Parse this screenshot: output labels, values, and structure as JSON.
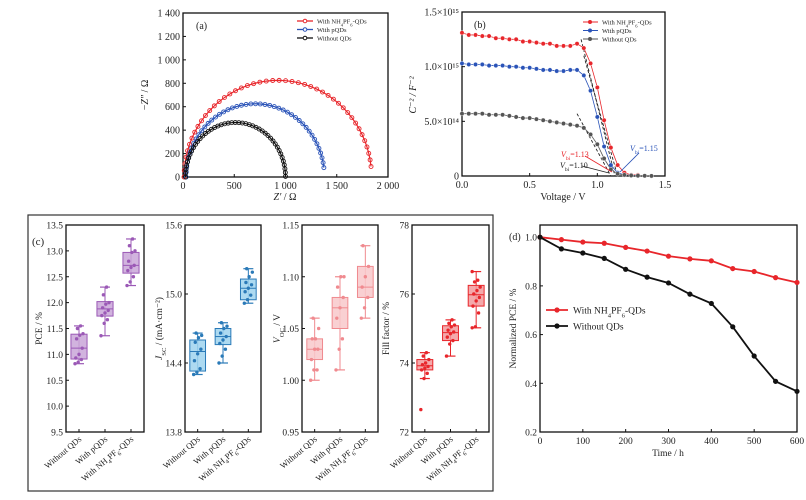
{
  "figure": {
    "panel_labels": {
      "a": "(a)",
      "b": "(b)",
      "c": "(c)",
      "d": "(d)"
    }
  },
  "colors": {
    "red": "#e8262b",
    "blue": "#2a53b8",
    "black": "#111111",
    "gray": "#555555",
    "purple": "#9b59b6",
    "purple_fill": "#c9a6d8",
    "cyan": "#2a7ab8",
    "cyan_fill": "#9fd3ef",
    "pink": "#f08a8f",
    "pink_fill": "#f8c8ca",
    "red_box": "#e8262b",
    "red_fill": "#f29a9c"
  },
  "chart_data": [
    {
      "id": "a",
      "type": "scatter",
      "title": "",
      "xlabel": "Z′ / Ω",
      "ylabel": "−Z″ / Ω",
      "xlim": [
        0,
        2000
      ],
      "ylim": [
        0,
        1400
      ],
      "xticks": [
        0,
        500,
        1000,
        1500,
        2000
      ],
      "xtick_labels": [
        "0",
        "500",
        "1 000",
        "1 500",
        "2 000"
      ],
      "yticks": [
        0,
        200,
        400,
        600,
        800,
        1000,
        1200,
        1400
      ],
      "ytick_labels": [
        "0",
        "200",
        "400",
        "600",
        "800",
        "1 000",
        "1 200",
        "1 400"
      ],
      "legend_position": "top-right",
      "series": [
        {
          "name": "With NH4PF6-QDs",
          "color_key": "red",
          "semicircle": {
            "x_start": 10,
            "x_end": 1840,
            "peak": 825,
            "end_y": 90
          }
        },
        {
          "name": "With pQDs",
          "color_key": "blue",
          "semicircle": {
            "x_start": 30,
            "x_end": 1380,
            "peak": 625,
            "end_y": 80
          }
        },
        {
          "name": "Without QDs",
          "color_key": "black",
          "semicircle": {
            "x_start": 25,
            "x_end": 1000,
            "peak": 465,
            "end_y": 5
          }
        }
      ]
    },
    {
      "id": "b",
      "type": "line",
      "xlabel": "Voltage / V",
      "ylabel": "C⁻² / F⁻²",
      "xlim": [
        0,
        1.5
      ],
      "ylim": [
        0,
        1500000000000000.0
      ],
      "xticks": [
        0,
        0.5,
        1.0,
        1.5
      ],
      "xtick_labels": [
        "0.0",
        "0.5",
        "1.0",
        "1.5"
      ],
      "yticks": [
        0,
        500000000000000.0,
        1000000000000000.0,
        1500000000000000.0
      ],
      "ytick_labels": [
        "0",
        "5.0×10¹⁴",
        "1.0×10¹⁵",
        "1.5×10¹⁵"
      ],
      "legend_position": "top-right",
      "annotations": [
        {
          "text": "Vbi=1.13",
          "color_key": "red",
          "x": 1.13
        },
        {
          "text": "Vbi=1.15",
          "color_key": "blue",
          "x": 1.15
        },
        {
          "text": "Vbi=1.10",
          "color_key": "black",
          "x": 1.1
        }
      ],
      "x": [
        0,
        0.05,
        0.1,
        0.15,
        0.2,
        0.25,
        0.3,
        0.35,
        0.4,
        0.45,
        0.5,
        0.55,
        0.6,
        0.65,
        0.7,
        0.75,
        0.8,
        0.85,
        0.9,
        0.95,
        1.0,
        1.05,
        1.1,
        1.15,
        1.2,
        1.25,
        1.3,
        1.35,
        1.4
      ],
      "series": [
        {
          "name": "With NH4PF6-QDs",
          "color_key": "red",
          "values": [
            1310000000000000.0,
            1290000000000000.0,
            1290000000000000.0,
            1280000000000000.0,
            1280000000000000.0,
            1260000000000000.0,
            1260000000000000.0,
            1250000000000000.0,
            1250000000000000.0,
            1230000000000000.0,
            1230000000000000.0,
            1220000000000000.0,
            1210000000000000.0,
            1210000000000000.0,
            1190000000000000.0,
            1190000000000000.0,
            1190000000000000.0,
            1210000000000000.0,
            1170000000000000.0,
            1030000000000000.0,
            810000000000000.0,
            510000000000000.0,
            260000000000000.0,
            100000000000000.0,
            30000000000000.0,
            10000000000000.0,
            10000000000000.0,
            null,
            null
          ]
        },
        {
          "name": "With pQDs",
          "color_key": "blue",
          "values": [
            1030000000000000.0,
            1020000000000000.0,
            1020000000000000.0,
            1020000000000000.0,
            1010000000000000.0,
            1010000000000000.0,
            1010000000000000.0,
            1000000000000000.0,
            1000000000000000.0,
            990000000000000.0,
            990000000000000.0,
            980000000000000.0,
            970000000000000.0,
            970000000000000.0,
            960000000000000.0,
            960000000000000.0,
            970000000000000.0,
            970000000000000.0,
            920000000000000.0,
            780000000000000.0,
            540000000000000.0,
            270000000000000.0,
            100000000000000.0,
            30000000000000.0,
            10000000000000.0,
            5000000000000.0,
            3000000000000.0,
            null,
            null
          ]
        },
        {
          "name": "Without QDs",
          "color_key": "gray",
          "values": [
            570000000000000.0,
            570000000000000.0,
            570000000000000.0,
            570000000000000.0,
            560000000000000.0,
            560000000000000.0,
            560000000000000.0,
            550000000000000.0,
            540000000000000.0,
            530000000000000.0,
            530000000000000.0,
            520000000000000.0,
            510000000000000.0,
            500000000000000.0,
            490000000000000.0,
            480000000000000.0,
            470000000000000.0,
            460000000000000.0,
            440000000000000.0,
            380000000000000.0,
            290000000000000.0,
            160000000000000.0,
            60000000000000.0,
            20000000000000.0,
            10000000000000.0,
            5000000000000.0,
            3000000000000.0,
            2000000000000.0,
            1000000000000.0
          ]
        }
      ]
    },
    {
      "id": "c1",
      "type": "box",
      "ylabel": "PCE / %",
      "ylim": [
        9.5,
        13.5
      ],
      "yticks": [
        9.5,
        10.0,
        10.5,
        11.0,
        11.5,
        12.0,
        12.5,
        13.0,
        13.5
      ],
      "ytick_labels": [
        "9.5",
        "10.0",
        "10.5",
        "11.0",
        "11.5",
        "12.0",
        "12.5",
        "13.0",
        "13.5"
      ],
      "categories": [
        "Without QDs",
        "With pQDs",
        "With NH4PF6-QDs"
      ],
      "color_key": "purple",
      "fill_key": "purple_fill",
      "boxes": [
        {
          "min": 10.82,
          "q1": 10.91,
          "median": 11.12,
          "q3": 11.39,
          "max": 11.55,
          "points": [
            10.82,
            10.85,
            10.9,
            10.93,
            11.0,
            11.12,
            11.3,
            11.37,
            11.4,
            11.5,
            11.55
          ]
        },
        {
          "min": 11.36,
          "q1": 11.74,
          "median": 11.88,
          "q3": 12.02,
          "max": 12.3,
          "points": [
            11.36,
            11.6,
            11.67,
            11.75,
            11.8,
            11.85,
            11.9,
            11.97,
            12.0,
            12.15,
            12.3
          ]
        },
        {
          "min": 12.33,
          "q1": 12.57,
          "median": 12.72,
          "q3": 12.97,
          "max": 13.23,
          "points": [
            12.33,
            12.4,
            12.5,
            12.62,
            12.68,
            12.72,
            12.8,
            12.97,
            13.0,
            13.1,
            13.23
          ]
        }
      ]
    },
    {
      "id": "c2",
      "type": "box",
      "ylabel": "JSC / (mA·cm⁻²)",
      "ylim": [
        13.8,
        15.6
      ],
      "yticks": [
        13.8,
        14.4,
        15.0,
        15.6
      ],
      "ytick_labels": [
        "13.8",
        "14.4",
        "15.0",
        "15.6"
      ],
      "categories": [
        "Without QDs",
        "With pQDs",
        "With NH4PF6-QDs"
      ],
      "color_key": "cyan",
      "fill_key": "cyan_fill",
      "boxes": [
        {
          "min": 14.3,
          "q1": 14.33,
          "median": 14.5,
          "q3": 14.6,
          "max": 14.66,
          "points": [
            14.3,
            14.32,
            14.35,
            14.42,
            14.48,
            14.52,
            14.58,
            14.62,
            14.64,
            14.66
          ]
        },
        {
          "min": 14.4,
          "q1": 14.56,
          "median": 14.63,
          "q3": 14.7,
          "max": 14.75,
          "points": [
            14.4,
            14.46,
            14.52,
            14.57,
            14.6,
            14.63,
            14.66,
            14.7,
            14.72,
            14.75
          ]
        },
        {
          "min": 14.92,
          "q1": 14.95,
          "median": 15.05,
          "q3": 15.13,
          "max": 15.22,
          "points": [
            14.92,
            14.95,
            14.99,
            15.02,
            15.05,
            15.08,
            15.1,
            15.15,
            15.19,
            15.22
          ]
        }
      ]
    },
    {
      "id": "c3",
      "type": "box",
      "ylabel": "VOC / V",
      "ylim": [
        0.95,
        1.15
      ],
      "yticks": [
        0.95,
        1.0,
        1.05,
        1.1,
        1.15
      ],
      "ytick_labels": [
        "0.95",
        "1.00",
        "1.05",
        "1.10",
        "1.15"
      ],
      "categories": [
        "Without QDs",
        "With pQDs",
        "With NH4PF6-QDs"
      ],
      "color_key": "pink",
      "fill_key": "pink_fill",
      "boxes": [
        {
          "min": 1.0,
          "q1": 1.02,
          "median": 1.03,
          "q3": 1.04,
          "max": 1.06,
          "points": [
            1.0,
            1.01,
            1.01,
            1.02,
            1.03,
            1.03,
            1.04,
            1.04,
            1.05,
            1.06
          ]
        },
        {
          "min": 1.01,
          "q1": 1.05,
          "median": 1.07,
          "q3": 1.08,
          "max": 1.1,
          "points": [
            1.01,
            1.03,
            1.04,
            1.06,
            1.07,
            1.08,
            1.09,
            1.1,
            1.1
          ]
        },
        {
          "min": 1.06,
          "q1": 1.08,
          "median": 1.09,
          "q3": 1.11,
          "max": 1.13,
          "points": [
            1.06,
            1.07,
            1.08,
            1.09,
            1.1,
            1.11,
            1.13
          ]
        }
      ]
    },
    {
      "id": "c4",
      "type": "box",
      "ylabel": "Fill factor / %",
      "ylim": [
        72,
        78
      ],
      "yticks": [
        72,
        74,
        76,
        78
      ],
      "ytick_labels": [
        "72",
        "74",
        "76",
        "78"
      ],
      "categories": [
        "Without QDs",
        "With pQDs",
        "With NH4PF6-QDs"
      ],
      "color_key": "red_box",
      "fill_key": "red_fill",
      "boxes": [
        {
          "min": 73.55,
          "q1": 73.8,
          "median": 73.92,
          "q3": 74.1,
          "max": 74.3,
          "points": [
            72.65,
            73.55,
            73.7,
            73.8,
            73.85,
            73.9,
            73.95,
            74.0,
            74.1,
            74.2,
            74.3
          ]
        },
        {
          "min": 74.2,
          "q1": 74.65,
          "median": 74.88,
          "q3": 75.08,
          "max": 75.25,
          "points": [
            74.2,
            74.55,
            74.65,
            74.75,
            74.85,
            74.9,
            74.95,
            75.05,
            75.1,
            75.15,
            75.25
          ]
        },
        {
          "min": 75.02,
          "q1": 75.65,
          "median": 75.98,
          "q3": 76.25,
          "max": 76.65,
          "points": [
            75.02,
            75.05,
            75.45,
            75.65,
            75.8,
            75.9,
            76.0,
            76.1,
            76.2,
            76.35,
            76.4,
            76.65
          ]
        }
      ]
    },
    {
      "id": "d",
      "type": "line",
      "xlabel": "Time / h",
      "ylabel": "Normalized PCE / %",
      "xlim": [
        0,
        600
      ],
      "ylim": [
        0.2,
        1.05
      ],
      "xticks": [
        0,
        100,
        200,
        300,
        400,
        500,
        600
      ],
      "xtick_labels": [
        "0",
        "100",
        "200",
        "300",
        "400",
        "500",
        "600"
      ],
      "yticks": [
        0.2,
        0.4,
        0.6,
        0.8,
        1.0
      ],
      "ytick_labels": [
        "0.2",
        "0.4",
        "0.6",
        "0.8",
        "1.0"
      ],
      "legend_position": "center-left",
      "x": [
        0,
        50,
        100,
        150,
        200,
        250,
        300,
        350,
        400,
        450,
        500,
        550,
        600
      ],
      "series": [
        {
          "name": "With NH4PF6-QDs",
          "color_key": "red",
          "values": [
            1.0,
            0.99,
            0.98,
            0.975,
            0.958,
            0.943,
            0.922,
            0.911,
            0.903,
            0.871,
            0.859,
            0.834,
            0.814
          ]
        },
        {
          "name": "Without QDs",
          "color_key": "black",
          "values": [
            1.0,
            0.952,
            0.935,
            0.913,
            0.868,
            0.836,
            0.812,
            0.766,
            0.728,
            0.632,
            0.512,
            0.408,
            0.367
          ]
        }
      ]
    }
  ]
}
